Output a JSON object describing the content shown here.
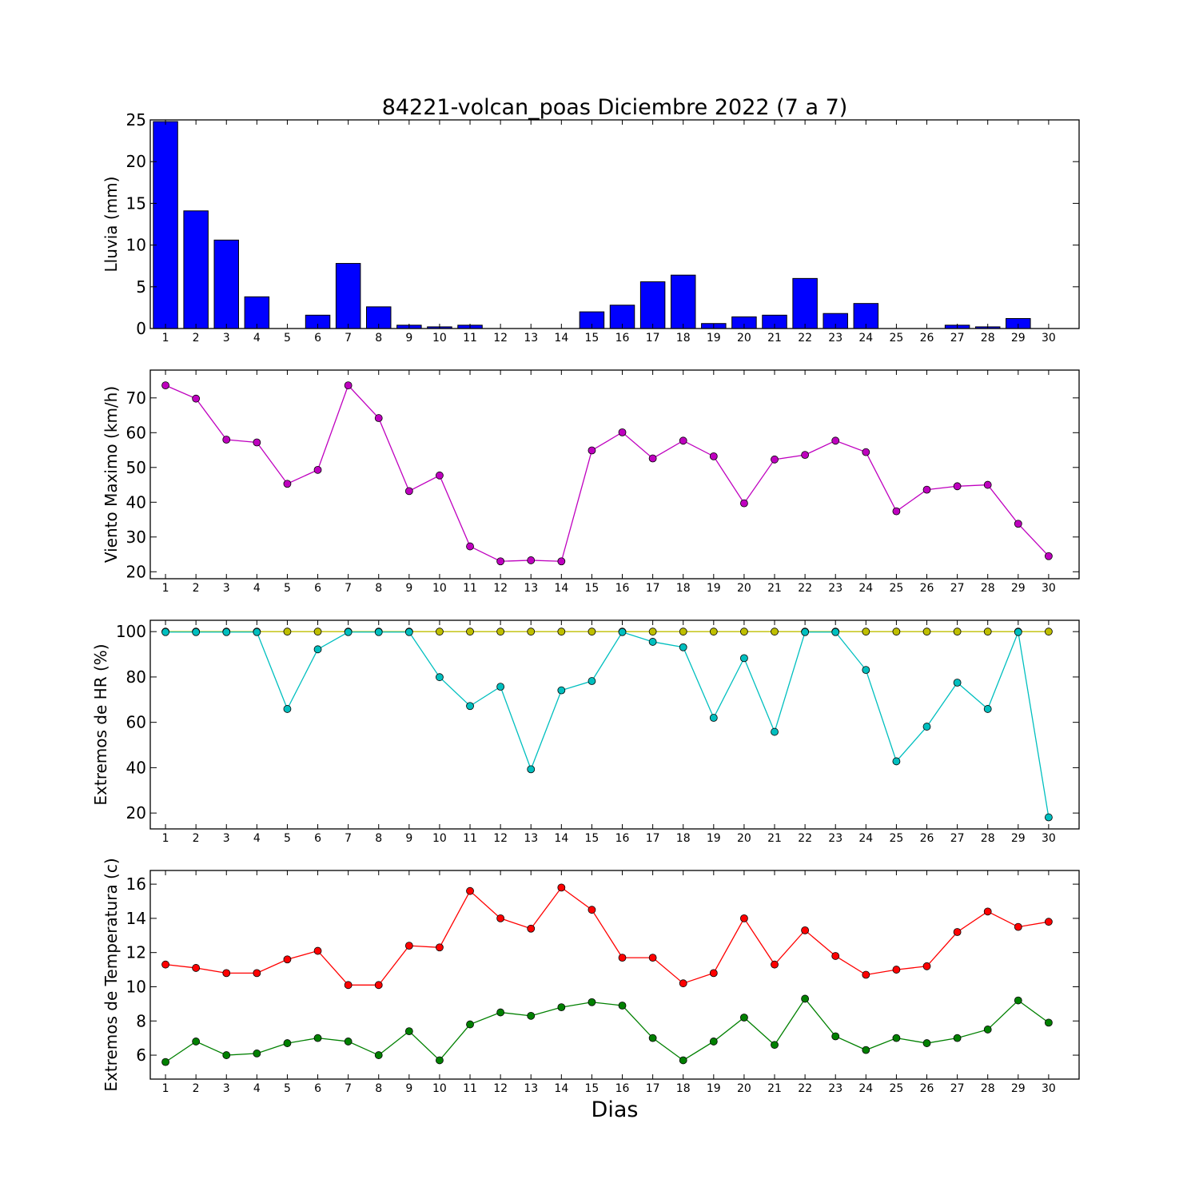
{
  "chart_data": [
    {
      "type": "bar",
      "title": "84221-volcan_poas Diciembre 2022  (7 a 7)",
      "ylabel": "Lluvia (mm)",
      "xlabel": "",
      "ylim": [
        0,
        25
      ],
      "yticks": [
        0,
        5,
        10,
        15,
        20,
        25
      ],
      "categories": [
        "1",
        "2",
        "3",
        "4",
        "5",
        "6",
        "7",
        "8",
        "9",
        "10",
        "11",
        "12",
        "13",
        "14",
        "15",
        "16",
        "17",
        "18",
        "19",
        "20",
        "21",
        "22",
        "23",
        "24",
        "25",
        "26",
        "27",
        "28",
        "29",
        "30"
      ],
      "series": [
        {
          "color": "#0000ff",
          "values": [
            24.8,
            14.1,
            10.6,
            3.8,
            0,
            1.6,
            7.8,
            2.6,
            0.4,
            0.2,
            0.4,
            0,
            0,
            0,
            2.0,
            2.8,
            5.6,
            6.4,
            0.6,
            1.4,
            1.6,
            6.0,
            1.8,
            3.0,
            0,
            0,
            0.4,
            0.2,
            1.2,
            0
          ]
        }
      ]
    },
    {
      "type": "line",
      "title": "",
      "ylabel": "Viento Maximo (km/h)",
      "xlabel": "",
      "ylim": [
        18,
        78
      ],
      "yticks": [
        20,
        30,
        40,
        50,
        60,
        70
      ],
      "categories": [
        "1",
        "2",
        "3",
        "4",
        "5",
        "6",
        "7",
        "8",
        "9",
        "10",
        "11",
        "12",
        "13",
        "14",
        "15",
        "16",
        "17",
        "18",
        "19",
        "20",
        "21",
        "22",
        "23",
        "24",
        "25",
        "26",
        "27",
        "28",
        "29",
        "30"
      ],
      "series": [
        {
          "color": "#bf00bf",
          "values": [
            73.6,
            69.8,
            58.0,
            57.2,
            45.3,
            49.3,
            73.6,
            64.2,
            43.2,
            47.7,
            27.3,
            23.0,
            23.3,
            23.0,
            54.9,
            60.1,
            52.6,
            57.7,
            53.2,
            39.7,
            52.3,
            53.6,
            57.7,
            54.4,
            37.4,
            43.6,
            44.6,
            45.0,
            33.8,
            24.5
          ]
        }
      ]
    },
    {
      "type": "line",
      "title": "",
      "ylabel": "Extremos de HR (%)",
      "xlabel": "",
      "ylim": [
        13,
        105
      ],
      "yticks": [
        20,
        40,
        60,
        80,
        100
      ],
      "categories": [
        "1",
        "2",
        "3",
        "4",
        "5",
        "6",
        "7",
        "8",
        "9",
        "10",
        "11",
        "12",
        "13",
        "14",
        "15",
        "16",
        "17",
        "18",
        "19",
        "20",
        "21",
        "22",
        "23",
        "24",
        "25",
        "26",
        "27",
        "28",
        "29",
        "30"
      ],
      "series": [
        {
          "color": "#bfbf00",
          "values": [
            100,
            100,
            100,
            100,
            100,
            100,
            100,
            100,
            100,
            100,
            100,
            100,
            100,
            100,
            100,
            100,
            100,
            100,
            100,
            100,
            100,
            100,
            100,
            100,
            100,
            100,
            100,
            100,
            100,
            100
          ]
        },
        {
          "color": "#00bfbf",
          "values": [
            99.8,
            99.8,
            99.8,
            99.8,
            65.9,
            92.2,
            99.8,
            99.8,
            99.8,
            79.9,
            67.2,
            75.7,
            39.3,
            74.1,
            78.2,
            99.8,
            95.5,
            93.1,
            62.0,
            88.3,
            55.8,
            99.8,
            99.8,
            83.1,
            42.8,
            58.1,
            77.5,
            65.9,
            99.8,
            18.1
          ]
        }
      ]
    },
    {
      "type": "line",
      "title": "",
      "ylabel": "Extremos de Temperatura (c)",
      "xlabel": "Dias",
      "ylim": [
        4.6,
        16.8
      ],
      "yticks": [
        6,
        8,
        10,
        12,
        14,
        16
      ],
      "categories": [
        "1",
        "2",
        "3",
        "4",
        "5",
        "6",
        "7",
        "8",
        "9",
        "10",
        "11",
        "12",
        "13",
        "14",
        "15",
        "16",
        "17",
        "18",
        "19",
        "20",
        "21",
        "22",
        "23",
        "24",
        "25",
        "26",
        "27",
        "28",
        "29",
        "30"
      ],
      "series": [
        {
          "color": "#ff0000",
          "values": [
            11.3,
            11.1,
            10.8,
            10.8,
            11.6,
            12.1,
            10.1,
            10.1,
            12.4,
            12.3,
            15.6,
            14.0,
            13.4,
            15.8,
            14.5,
            11.7,
            11.7,
            10.2,
            10.8,
            14.0,
            11.3,
            13.3,
            11.8,
            10.7,
            11.0,
            11.2,
            13.2,
            14.4,
            13.5,
            13.8
          ]
        },
        {
          "color": "#008000",
          "values": [
            5.6,
            6.8,
            6.0,
            6.1,
            6.7,
            7.0,
            6.8,
            6.0,
            7.4,
            5.7,
            7.8,
            8.5,
            8.3,
            8.8,
            9.1,
            8.9,
            7.0,
            5.7,
            6.8,
            8.2,
            6.6,
            9.3,
            7.1,
            6.3,
            7.0,
            6.7,
            7.0,
            7.5,
            9.2,
            7.9
          ]
        }
      ]
    }
  ]
}
